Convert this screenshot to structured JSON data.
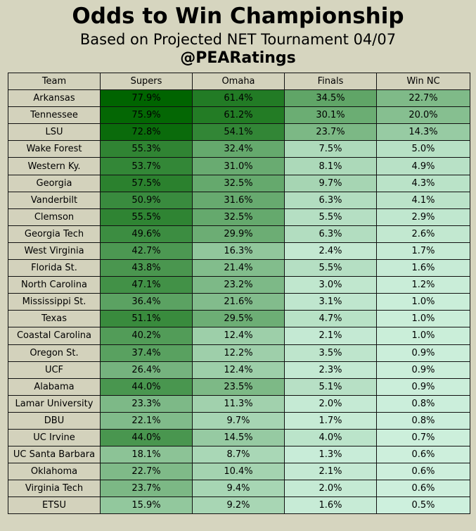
{
  "header": {
    "title": "Odds to Win Championship",
    "subtitle": "Based on Projected NET Tournament 04/07",
    "handle": "@PEARatings"
  },
  "chart_data": {
    "type": "table",
    "columns": [
      "Team",
      "Supers",
      "Omaha",
      "Finals",
      "Win NC"
    ],
    "rows": [
      [
        "Arkansas",
        "77.9%",
        "61.4%",
        "34.5%",
        "22.7%"
      ],
      [
        "Tennessee",
        "75.9%",
        "61.2%",
        "30.1%",
        "20.0%"
      ],
      [
        "LSU",
        "72.8%",
        "54.1%",
        "23.7%",
        "14.3%"
      ],
      [
        "Wake Forest",
        "55.3%",
        "32.4%",
        "7.5%",
        "5.0%"
      ],
      [
        "Western Ky.",
        "53.7%",
        "31.0%",
        "8.1%",
        "4.9%"
      ],
      [
        "Georgia",
        "57.5%",
        "32.5%",
        "9.7%",
        "4.3%"
      ],
      [
        "Vanderbilt",
        "50.9%",
        "31.6%",
        "6.3%",
        "4.1%"
      ],
      [
        "Clemson",
        "55.5%",
        "32.5%",
        "5.5%",
        "2.9%"
      ],
      [
        "Georgia Tech",
        "49.6%",
        "29.9%",
        "6.3%",
        "2.6%"
      ],
      [
        "West Virginia",
        "42.7%",
        "16.3%",
        "2.4%",
        "1.7%"
      ],
      [
        "Florida St.",
        "43.8%",
        "21.4%",
        "5.5%",
        "1.6%"
      ],
      [
        "North Carolina",
        "47.1%",
        "23.2%",
        "3.0%",
        "1.2%"
      ],
      [
        "Mississippi St.",
        "36.4%",
        "21.6%",
        "3.1%",
        "1.0%"
      ],
      [
        "Texas",
        "51.1%",
        "29.5%",
        "4.7%",
        "1.0%"
      ],
      [
        "Coastal Carolina",
        "40.2%",
        "12.4%",
        "2.1%",
        "1.0%"
      ],
      [
        "Oregon St.",
        "37.4%",
        "12.2%",
        "3.5%",
        "0.9%"
      ],
      [
        "UCF",
        "26.4%",
        "12.4%",
        "2.3%",
        "0.9%"
      ],
      [
        "Alabama",
        "44.0%",
        "23.5%",
        "5.1%",
        "0.9%"
      ],
      [
        "Lamar University",
        "23.3%",
        "11.3%",
        "2.0%",
        "0.8%"
      ],
      [
        "DBU",
        "22.1%",
        "9.7%",
        "1.7%",
        "0.8%"
      ],
      [
        "UC Irvine",
        "44.0%",
        "14.5%",
        "4.0%",
        "0.7%"
      ],
      [
        "UC Santa Barbara",
        "18.1%",
        "8.7%",
        "1.3%",
        "0.6%"
      ],
      [
        "Oklahoma",
        "22.7%",
        "10.4%",
        "2.1%",
        "0.6%"
      ],
      [
        "Virginia Tech",
        "23.7%",
        "9.4%",
        "2.0%",
        "0.6%"
      ],
      [
        "ETSU",
        "15.9%",
        "9.2%",
        "1.6%",
        "0.5%"
      ]
    ],
    "color_scale": {
      "low": "#d2f3e2",
      "high": "#006400",
      "header_bg": "#d3d2bc",
      "page_bg": "#d6d5bf"
    }
  }
}
